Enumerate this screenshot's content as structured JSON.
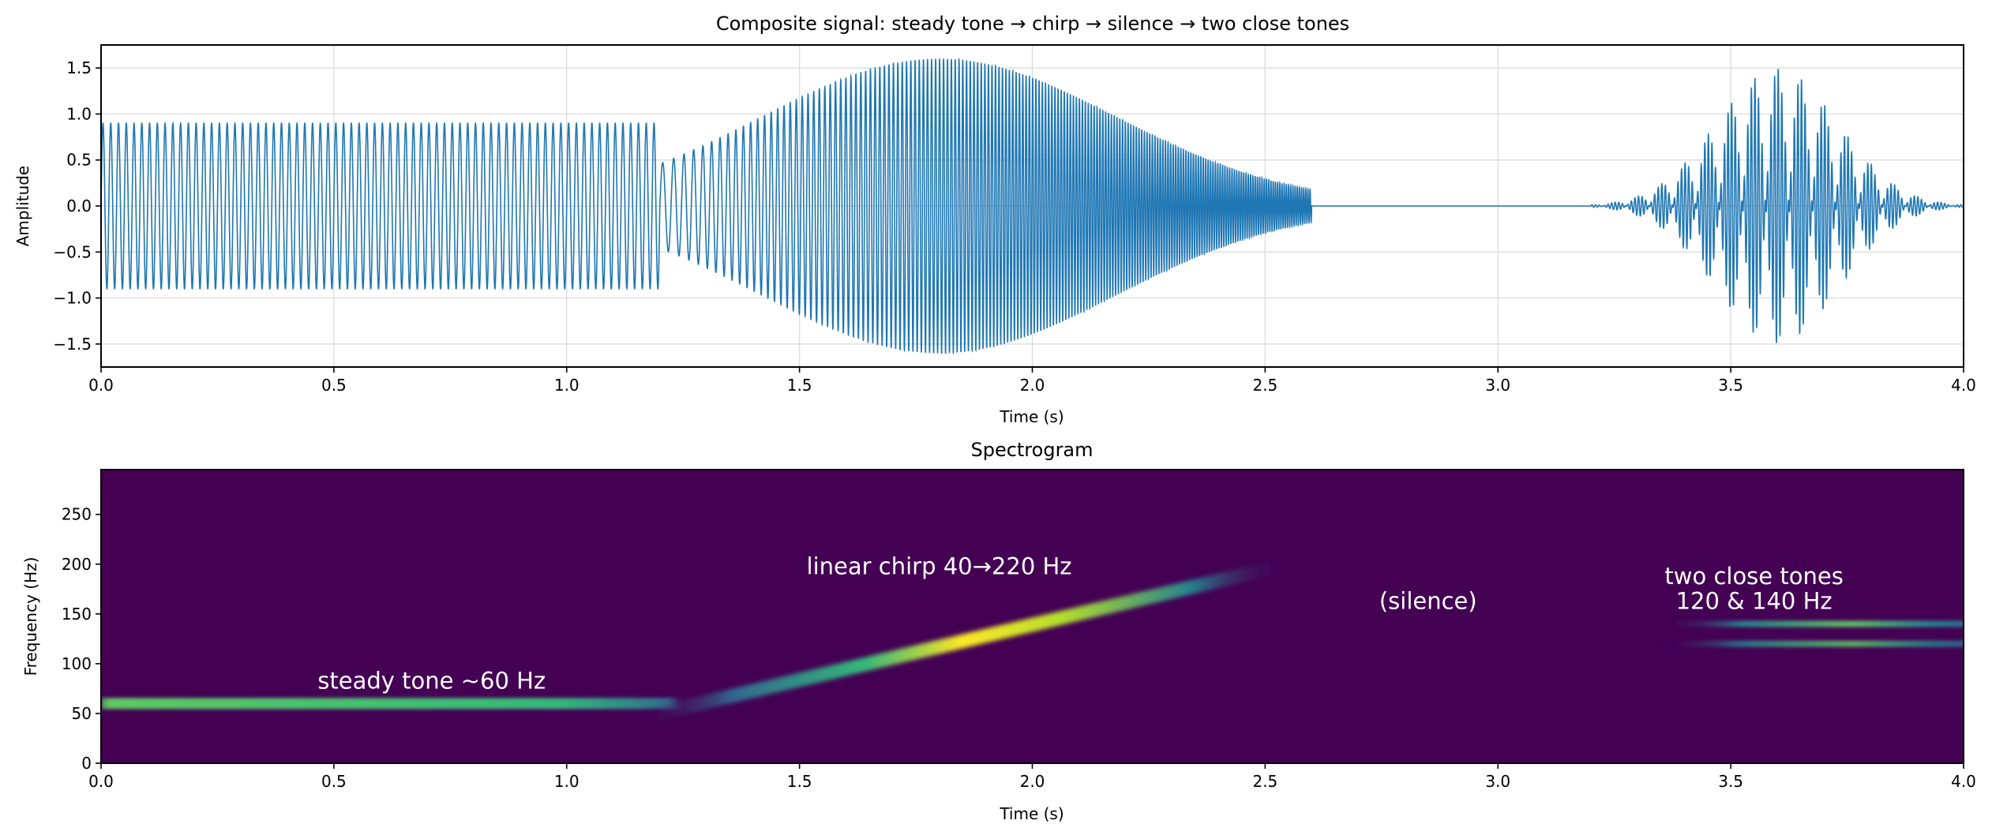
{
  "chart_data": [
    {
      "type": "line",
      "title": "Composite signal: steady tone → chirp → silence → two close tones",
      "xlabel": "Time (s)",
      "ylabel": "Amplitude",
      "xlim": [
        0,
        4
      ],
      "ylim": [
        -1.75,
        1.75
      ],
      "xticks": [
        0.0,
        0.5,
        1.0,
        1.5,
        2.0,
        2.5,
        3.0,
        3.5,
        4.0
      ],
      "xtick_labels": [
        "0.0",
        "0.5",
        "1.0",
        "1.5",
        "2.0",
        "2.5",
        "3.0",
        "3.5",
        "4.0"
      ],
      "yticks": [
        -1.5,
        -1.0,
        -0.5,
        0.0,
        0.5,
        1.0,
        1.5
      ],
      "ytick_labels": [
        "−1.5",
        "−1.0",
        "−0.5",
        "0.0",
        "0.5",
        "1.0",
        "1.5"
      ],
      "grid": true,
      "color": "#1f77b4",
      "segments": [
        {
          "kind": "steady tone",
          "t_start": 0.0,
          "t_end": 1.2,
          "frequency_hz": 60,
          "amplitude": 0.9
        },
        {
          "kind": "linear chirp",
          "t_start": 1.2,
          "t_end": 2.6,
          "f_start_hz": 40,
          "f_end_hz": 220,
          "peak_amplitude": 1.6,
          "peak_time": 1.8
        },
        {
          "kind": "silence",
          "t_start": 2.6,
          "t_end": 3.2
        },
        {
          "kind": "two close tones",
          "t_start": 3.2,
          "t_end": 4.0,
          "frequencies_hz": [
            120,
            140
          ],
          "peak_amplitude": 1.5,
          "peak_time": 3.6
        }
      ]
    },
    {
      "type": "heatmap",
      "title": "Spectrogram",
      "xlabel": "Time (s)",
      "ylabel": "Frequency (Hz)",
      "xlim": [
        0,
        4
      ],
      "ylim": [
        0,
        295
      ],
      "xticks": [
        0.0,
        0.5,
        1.0,
        1.5,
        2.0,
        2.5,
        3.0,
        3.5,
        4.0
      ],
      "xtick_labels": [
        "0.0",
        "0.5",
        "1.0",
        "1.5",
        "2.0",
        "2.5",
        "3.0",
        "3.5",
        "4.0"
      ],
      "yticks": [
        0,
        50,
        100,
        150,
        200,
        250
      ],
      "ytick_labels": [
        "0",
        "50",
        "100",
        "150",
        "200",
        "250"
      ],
      "colormap": "viridis",
      "background_color": "#440154",
      "bands": [
        {
          "label": "steady tone",
          "t_start": 0.0,
          "t_end": 1.2,
          "f_start_hz": 60,
          "f_end_hz": 60,
          "intensity": 0.8
        },
        {
          "label": "chirp",
          "t_start": 1.15,
          "t_end": 2.55,
          "f_start_hz": 45,
          "f_end_hz": 200,
          "intensity": 1.0
        },
        {
          "label": "tone 1",
          "t_start": 3.35,
          "t_end": 4.0,
          "f_start_hz": 120,
          "f_end_hz": 120,
          "intensity": 0.55
        },
        {
          "label": "tone 2",
          "t_start": 3.35,
          "t_end": 4.0,
          "f_start_hz": 140,
          "f_end_hz": 140,
          "intensity": 0.65
        }
      ],
      "annotations": [
        {
          "text": "steady tone ~60 Hz",
          "x": 0.71,
          "y": 75
        },
        {
          "text": "linear chirp 40→220 Hz",
          "x": 1.8,
          "y": 190
        },
        {
          "text": "(silence)",
          "x": 2.85,
          "y": 155
        },
        {
          "text": "two close tones",
          "x": 3.55,
          "y": 180
        },
        {
          "text": "120 & 140 Hz",
          "x": 3.55,
          "y": 155
        }
      ]
    }
  ]
}
